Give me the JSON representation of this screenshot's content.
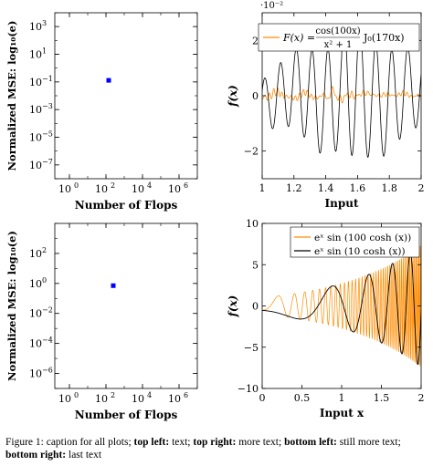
{
  "chart_data": [
    {
      "id": "tl",
      "type": "scatter",
      "xlabel": "Number of Flops",
      "ylabel": "Normalized MSE: log₁₀(e)",
      "x_scale": "log",
      "y_scale": "log",
      "xlim_exp": [
        -0.8,
        7
      ],
      "ylim_exp": [
        -8,
        4
      ],
      "xticks": [
        0,
        2,
        4,
        6
      ],
      "yticks": [
        3,
        1,
        -1,
        -3,
        -5,
        -7
      ],
      "points": [
        {
          "x": 141,
          "y": 0.13,
          "color": "#0000ff"
        }
      ]
    },
    {
      "id": "tr",
      "type": "line",
      "xlabel": "Input",
      "ylabel": "f(x)",
      "y_multiplier": "·10⁻²",
      "xlim": [
        1,
        2
      ],
      "ylim": [
        -3,
        3
      ],
      "xticks": [
        "1",
        "1.2",
        "1.4",
        "1.6",
        "1.8",
        "2"
      ],
      "yticks": [
        "−2",
        "0",
        "2"
      ],
      "legend": {
        "position": "top-right",
        "label": "F(x) = cos(100x) / (x² + 1) · J₀(170x)"
      },
      "series": [
        {
          "color": "#ff8c00",
          "role": "orange"
        },
        {
          "color": "#000000",
          "role": "black"
        }
      ]
    },
    {
      "id": "bl",
      "type": "scatter",
      "xlabel": "Number of Flops",
      "ylabel": "Normalized MSE: log₁₀(e)",
      "x_scale": "log",
      "y_scale": "log",
      "xlim_exp": [
        -0.8,
        7
      ],
      "ylim_exp": [
        -7,
        4
      ],
      "xticks": [
        0,
        2,
        4,
        6
      ],
      "yticks": [
        2,
        0,
        -2,
        -4,
        -6
      ],
      "points": [
        {
          "x": 251,
          "y": 0.71,
          "color": "#0000ff"
        }
      ]
    },
    {
      "id": "br",
      "type": "line",
      "xlabel": "Input x",
      "ylabel": "f(x)",
      "xlim": [
        0,
        2
      ],
      "ylim": [
        -10,
        10
      ],
      "xticks": [
        "0",
        "0.5",
        "1",
        "1.5",
        "2"
      ],
      "yticks": [
        "−10",
        "−5",
        "0",
        "5",
        "10"
      ],
      "legend": {
        "position": "top-right"
      },
      "series": [
        {
          "name": "eˣ sin (100 cosh (x))",
          "color": "#ff8c00"
        },
        {
          "name": "eˣ sin (10 cosh (x))",
          "color": "#000000"
        }
      ]
    }
  ],
  "caption": {
    "prefix": "Figure 1: caption for all plots; ",
    "l1": "top left:",
    "t1": " text; ",
    "l2": "top right:",
    "t2": " more text; ",
    "l3": "bottom left:",
    "t3": " still more text; ",
    "l4": "bottom right:",
    "t4": " last text"
  }
}
